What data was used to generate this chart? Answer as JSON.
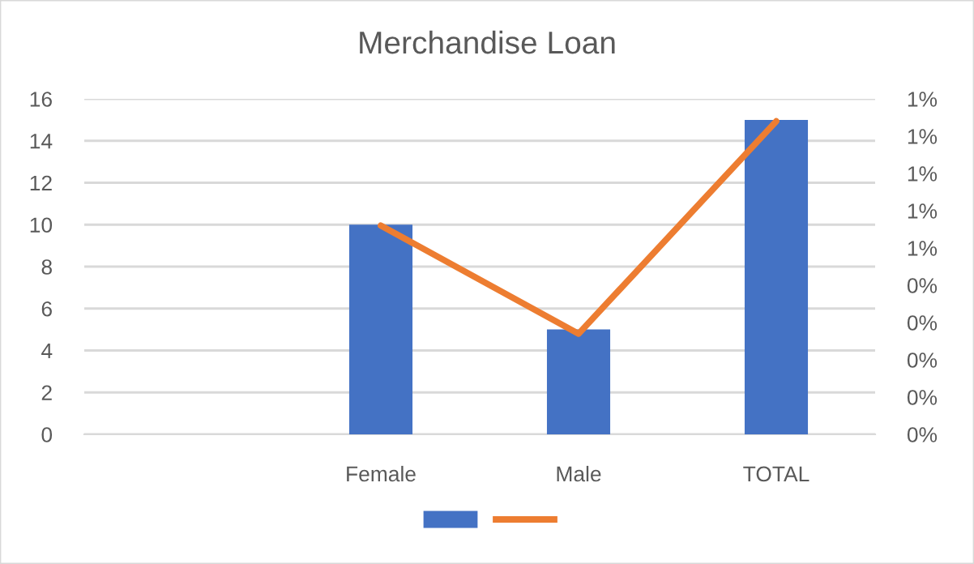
{
  "chart_data": {
    "type": "bar",
    "title": "Merchandise Loan",
    "categories": [
      null,
      "Female",
      "Male",
      "TOTAL"
    ],
    "series": [
      {
        "color": "#4472c4",
        "values": [
          null,
          10,
          5,
          15
        ]
      },
      {
        "type": "line",
        "axis": "y2",
        "color": "#ed7d31",
        "values": [
          null,
          0.56,
          0.27,
          0.84
        ]
      }
    ],
    "ylim": [
      0,
      16
    ],
    "yticks": [
      0,
      2,
      4,
      6,
      8,
      10,
      12,
      14,
      16
    ],
    "y2lim": [
      0,
      0.9
    ],
    "y2ticks": [
      {
        "value": 0,
        "label": "0%"
      },
      {
        "value": 0.1,
        "label": "0%"
      },
      {
        "value": 0.2,
        "label": "0%"
      },
      {
        "value": 0.3,
        "label": "0%"
      },
      {
        "value": 0.4,
        "label": "0%"
      },
      {
        "value": 0.5,
        "label": "1%"
      },
      {
        "value": 0.6,
        "label": "1%"
      },
      {
        "value": 0.7,
        "label": "1%"
      },
      {
        "value": 0.8,
        "label": "1%"
      },
      {
        "value": 0.9,
        "label": "1%"
      }
    ],
    "grid": "y",
    "marker": "none",
    "line_style": "solid"
  }
}
